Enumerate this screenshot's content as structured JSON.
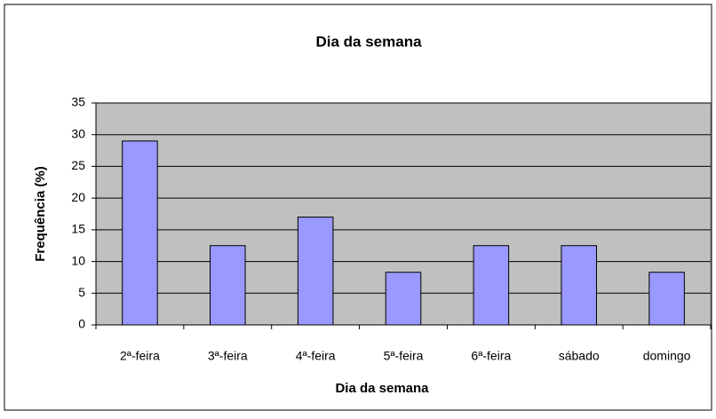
{
  "chart_data": {
    "type": "bar",
    "title": "Dia da semana",
    "x_label": "Dia da semana",
    "y_label": "Frequência (%)",
    "categories": [
      "2ª-feira",
      "3ª-feira",
      "4ª-feira",
      "5ª-feira",
      "6ª-feira",
      "sábado",
      "domingo"
    ],
    "values": [
      29,
      12.5,
      17,
      8.3,
      12.5,
      12.5,
      8.3
    ],
    "color": "#9999ff",
    "ylim": [
      0,
      35
    ],
    "yticks": [
      0,
      5,
      10,
      15,
      20,
      25,
      30,
      35
    ],
    "grid": true
  }
}
